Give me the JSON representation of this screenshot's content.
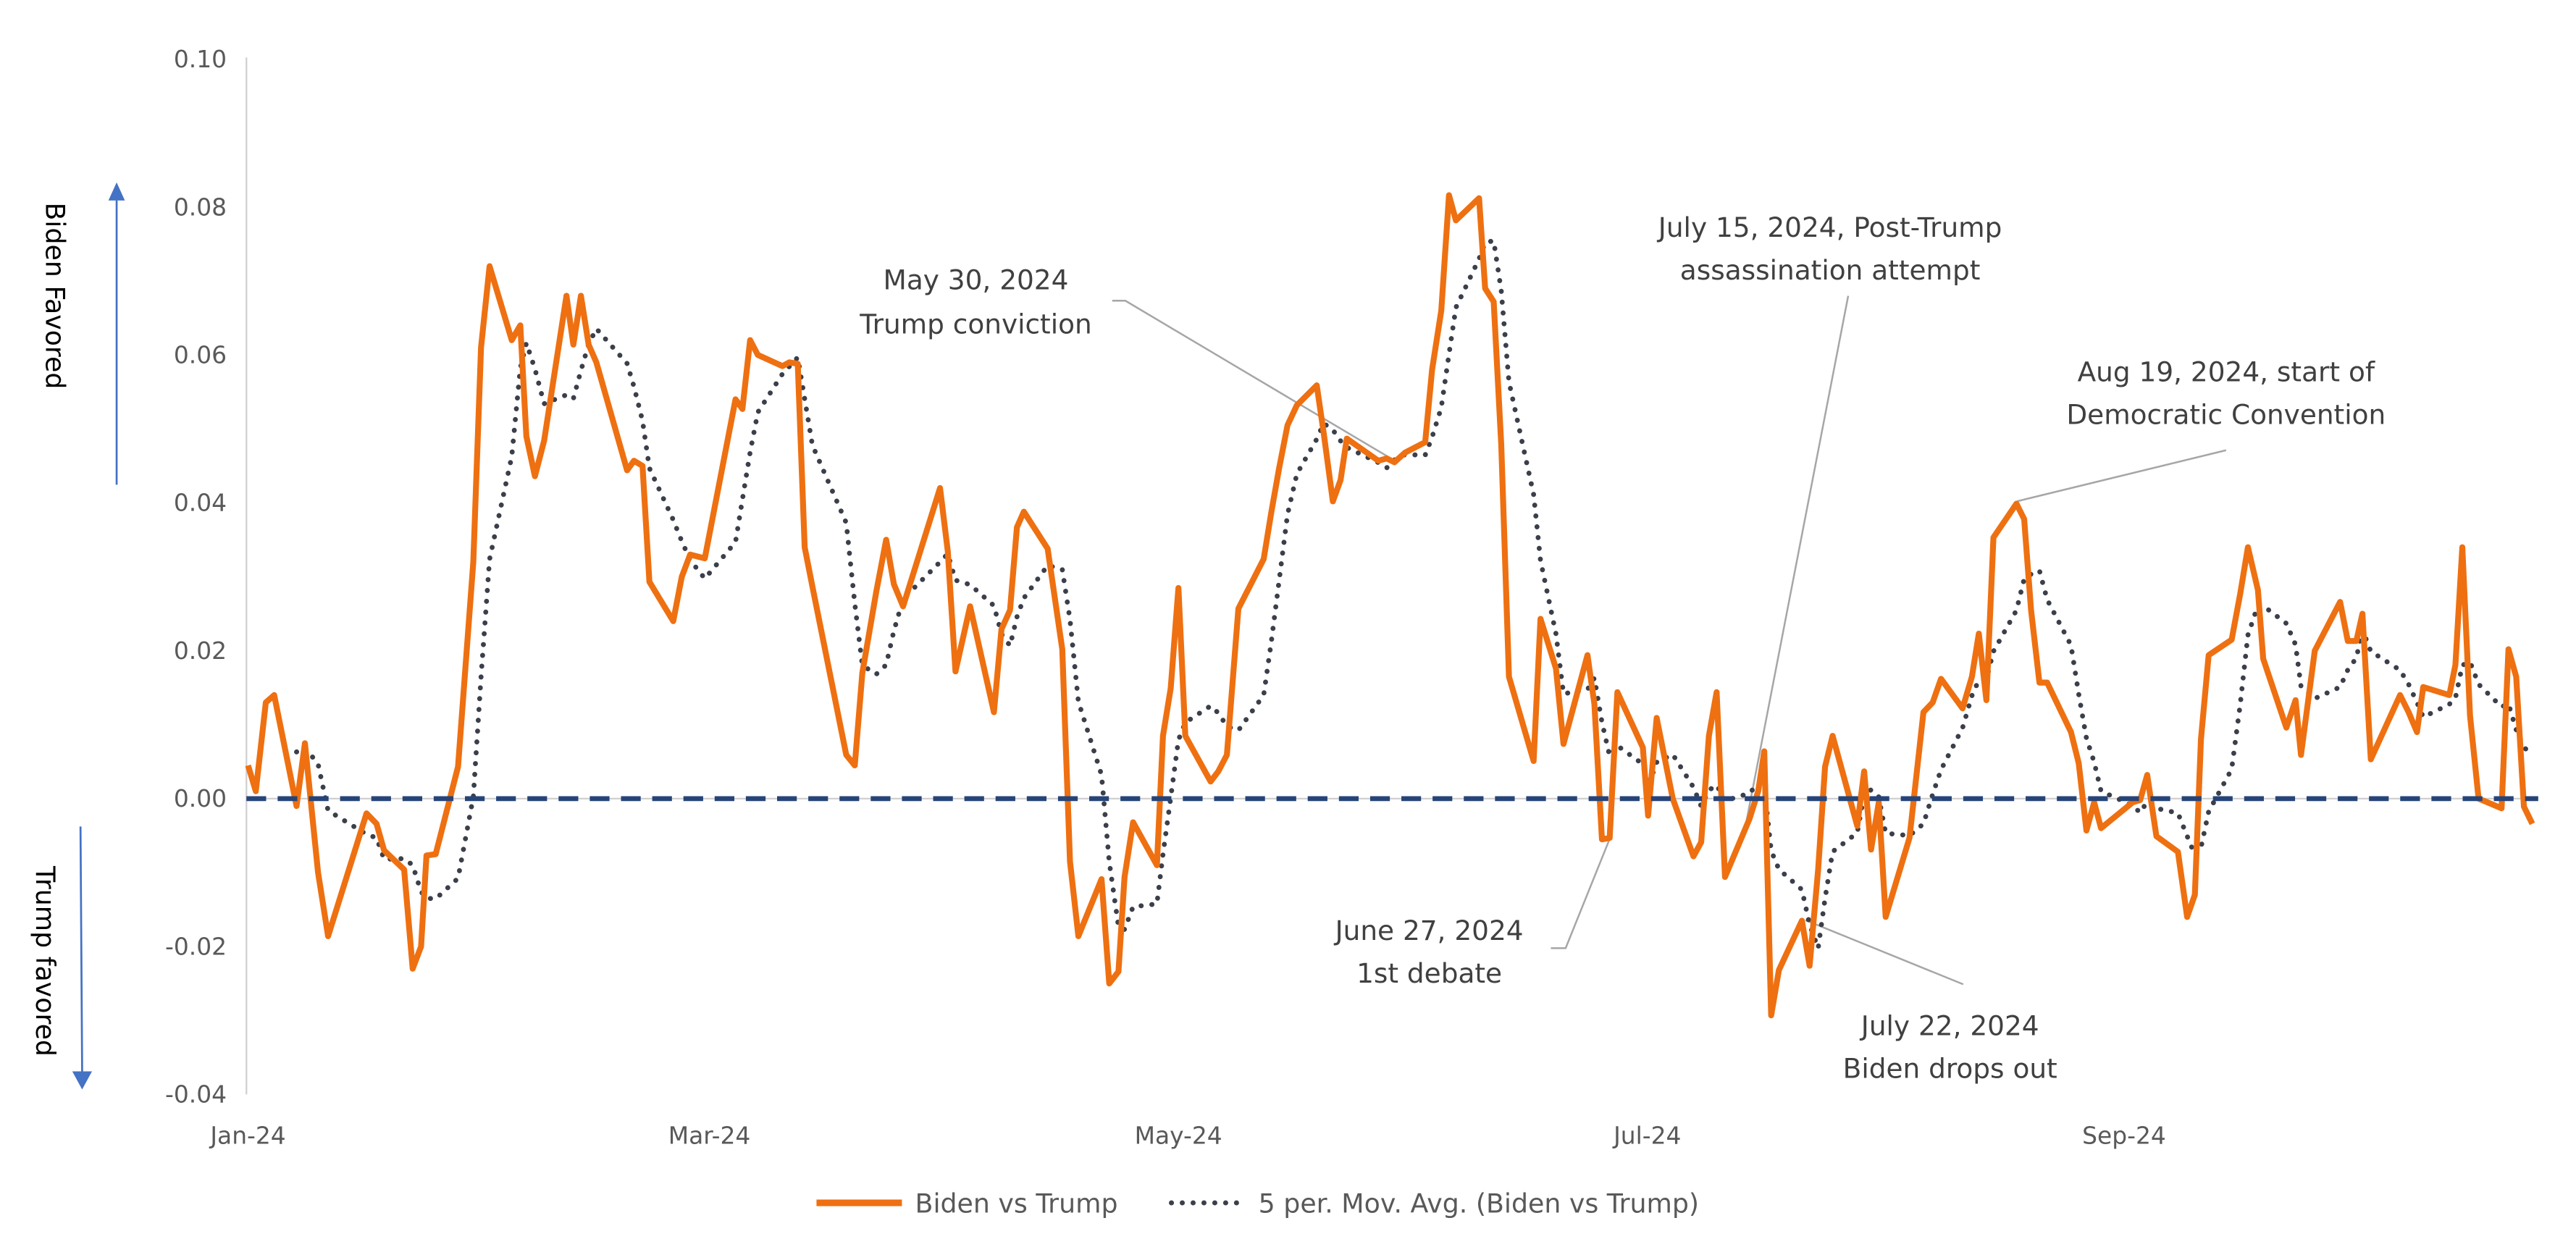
{
  "chart_data": {
    "type": "line",
    "title": "",
    "xlabel": "",
    "ylabel_top": "Biden Favored",
    "ylabel_bottom": "Trump favored",
    "x_unit": "days since 2024-01-01",
    "x_ticks": [
      {
        "day": 0,
        "label": "Jan-24"
      },
      {
        "day": 60,
        "label": "Mar-24"
      },
      {
        "day": 121,
        "label": "May-24"
      },
      {
        "day": 182,
        "label": "Jul-24"
      },
      {
        "day": 244,
        "label": "Sep-24"
      }
    ],
    "ylim": [
      -0.04,
      0.1
    ],
    "y_ticks": [
      "0.10",
      "0.08",
      "0.06",
      "0.04",
      "0.02",
      "0.00",
      "-0.02",
      "-0.04"
    ],
    "y_tick_values": [
      0.1,
      0.08,
      0.06,
      0.04,
      0.02,
      0.0,
      -0.02,
      -0.04
    ],
    "grid": false,
    "legend_position": "bottom",
    "colors": {
      "series": "#EE7011",
      "moving_avg": "#3B3F4A",
      "zero_line": "#264478",
      "arrow": "#4472C4"
    },
    "series": [
      {
        "name": "Biden vs Trump",
        "points": [
          [
            0,
            0.0045
          ],
          [
            1,
            0.001
          ],
          [
            2.3,
            0.013
          ],
          [
            3.4,
            0.014
          ],
          [
            6.3,
            -0.001
          ],
          [
            7.4,
            0.0075
          ],
          [
            9.1,
            -0.01
          ],
          [
            10.4,
            -0.0186
          ],
          [
            15.4,
            -0.002
          ],
          [
            16.7,
            -0.0034
          ],
          [
            17.7,
            -0.007
          ],
          [
            20.3,
            -0.0096
          ],
          [
            21.4,
            -0.023
          ],
          [
            22.5,
            -0.02
          ],
          [
            23.2,
            -0.0077
          ],
          [
            24.4,
            -0.0075
          ],
          [
            27.3,
            0.0043
          ],
          [
            29.3,
            0.032
          ],
          [
            30.3,
            0.061
          ],
          [
            31.4,
            0.072
          ],
          [
            34.3,
            0.062
          ],
          [
            35.4,
            0.064
          ],
          [
            36.2,
            0.049
          ],
          [
            37.3,
            0.0436
          ],
          [
            38.5,
            0.0484
          ],
          [
            41.4,
            0.068
          ],
          [
            42.3,
            0.0614
          ],
          [
            43.3,
            0.068
          ],
          [
            44.3,
            0.0614
          ],
          [
            45.3,
            0.059
          ],
          [
            49.3,
            0.0444
          ],
          [
            50.2,
            0.0457
          ],
          [
            51.3,
            0.045
          ],
          [
            52.2,
            0.0293
          ],
          [
            55.3,
            0.024
          ],
          [
            56.4,
            0.03
          ],
          [
            57.5,
            0.033
          ],
          [
            59.4,
            0.0325
          ],
          [
            63.4,
            0.054
          ],
          [
            64.3,
            0.0527
          ],
          [
            65.3,
            0.062
          ],
          [
            66.3,
            0.06
          ],
          [
            69.5,
            0.0585
          ],
          [
            70.4,
            0.059
          ],
          [
            71.5,
            0.0588
          ],
          [
            72.4,
            0.034
          ],
          [
            73.4,
            0.0287
          ],
          [
            77.8,
            0.0059
          ],
          [
            78.9,
            0.0045
          ],
          [
            79.9,
            0.017
          ],
          [
            81.7,
            0.028
          ],
          [
            83.0,
            0.035
          ],
          [
            84.0,
            0.029
          ],
          [
            85.2,
            0.026
          ],
          [
            90.0,
            0.042
          ],
          [
            91.0,
            0.0335
          ],
          [
            92.0,
            0.0172
          ],
          [
            93.9,
            0.026
          ],
          [
            97.0,
            0.0117
          ],
          [
            98.0,
            0.0229
          ],
          [
            99.1,
            0.0255
          ],
          [
            100.0,
            0.0367
          ],
          [
            100.9,
            0.0388
          ],
          [
            104.0,
            0.0338
          ],
          [
            105.9,
            0.0202
          ],
          [
            106.9,
            -0.0085
          ],
          [
            108.0,
            -0.0186
          ],
          [
            111.0,
            -0.0109
          ],
          [
            112.0,
            -0.025
          ],
          [
            113.2,
            -0.0234
          ],
          [
            114.0,
            -0.0106
          ],
          [
            115.1,
            -0.0032
          ],
          [
            118.2,
            -0.009
          ],
          [
            119.0,
            0.0085
          ],
          [
            120.0,
            0.0149
          ],
          [
            121.0,
            0.0285
          ],
          [
            121.9,
            0.0085
          ],
          [
            125.2,
            0.0023
          ],
          [
            126.2,
            0.0037
          ],
          [
            127.3,
            0.0059
          ],
          [
            128.8,
            0.0257
          ],
          [
            132.1,
            0.0324
          ],
          [
            133.1,
            0.0388
          ],
          [
            134.1,
            0.0447
          ],
          [
            135.2,
            0.0505
          ],
          [
            136.4,
            0.0532
          ],
          [
            139.0,
            0.0559
          ],
          [
            139.9,
            0.0495
          ],
          [
            141.1,
            0.0402
          ],
          [
            142.1,
            0.0431
          ],
          [
            142.9,
            0.0487
          ],
          [
            147.0,
            0.0457
          ],
          [
            148.1,
            0.046
          ],
          [
            149.1,
            0.0455
          ],
          [
            150.5,
            0.0468
          ],
          [
            153.1,
            0.0482
          ],
          [
            154.0,
            0.058
          ],
          [
            155.2,
            0.066
          ],
          [
            156.2,
            0.0816
          ],
          [
            157.1,
            0.0782
          ],
          [
            160.1,
            0.0812
          ],
          [
            160.9,
            0.069
          ],
          [
            162.0,
            0.0672
          ],
          [
            163.0,
            0.0479
          ],
          [
            164.0,
            0.0165
          ],
          [
            167.2,
            0.0051
          ],
          [
            168.1,
            0.0243
          ],
          [
            170.1,
            0.0176
          ],
          [
            171.1,
            0.0074
          ],
          [
            174.2,
            0.0194
          ],
          [
            175.1,
            0.0128
          ],
          [
            176.1,
            -0.0055
          ],
          [
            177.1,
            -0.0053
          ],
          [
            178.1,
            0.0144
          ],
          [
            181.4,
            0.0069
          ],
          [
            182.1,
            -0.0023
          ],
          [
            183.2,
            0.0109
          ],
          [
            185.3,
            0.0
          ],
          [
            188.0,
            -0.0078
          ],
          [
            189.0,
            -0.0059
          ],
          [
            190.0,
            0.0085
          ],
          [
            191.0,
            0.0144
          ],
          [
            192.1,
            -0.0106
          ],
          [
            195.3,
            -0.0027
          ],
          [
            196.4,
            0.001
          ],
          [
            197.2,
            0.0064
          ],
          [
            198.1,
            -0.0293
          ],
          [
            199.1,
            -0.0232
          ],
          [
            202.1,
            -0.0165
          ],
          [
            203.1,
            -0.0226
          ],
          [
            204.2,
            -0.0096
          ],
          [
            205.1,
            0.0043
          ],
          [
            206.1,
            0.0085
          ],
          [
            209.3,
            -0.0037
          ],
          [
            210.2,
            0.0037
          ],
          [
            211.1,
            -0.0069
          ],
          [
            212.1,
            -0.0005
          ],
          [
            213.0,
            -0.016
          ],
          [
            216.1,
            -0.0053
          ],
          [
            217.9,
            0.0117
          ],
          [
            219.1,
            0.013
          ],
          [
            220.2,
            0.0162
          ],
          [
            223.0,
            0.0122
          ],
          [
            224.2,
            0.0165
          ],
          [
            225.1,
            0.0223
          ],
          [
            226.1,
            0.0133
          ],
          [
            227.0,
            0.0353
          ],
          [
            230.0,
            0.0399
          ],
          [
            231.0,
            0.0378
          ],
          [
            231.9,
            0.0255
          ],
          [
            233.0,
            0.0157
          ],
          [
            234.0,
            0.0157
          ],
          [
            237.1,
            0.009
          ],
          [
            238.1,
            0.0048
          ],
          [
            239.1,
            -0.0043
          ],
          [
            240.1,
            -0.0005
          ],
          [
            241.0,
            -0.004
          ],
          [
            245.1,
            -0.0005
          ],
          [
            246.1,
            -0.0002
          ],
          [
            247.0,
            0.0032
          ],
          [
            248.2,
            -0.0051
          ],
          [
            251.0,
            -0.0072
          ],
          [
            252.2,
            -0.016
          ],
          [
            253.2,
            -0.013
          ],
          [
            254.0,
            0.008
          ],
          [
            255.0,
            0.0194
          ],
          [
            258.0,
            0.0215
          ],
          [
            259.1,
            0.0277
          ],
          [
            260.1,
            0.034
          ],
          [
            261.4,
            0.0282
          ],
          [
            262.1,
            0.0189
          ],
          [
            265.1,
            0.0096
          ],
          [
            266.3,
            0.0133
          ],
          [
            267.0,
            0.0059
          ],
          [
            268.8,
            0.02
          ],
          [
            272.1,
            0.0266
          ],
          [
            273.1,
            0.0213
          ],
          [
            274.2,
            0.0213
          ],
          [
            275.0,
            0.025
          ],
          [
            276.1,
            0.0053
          ],
          [
            279.9,
            0.014
          ],
          [
            281.0,
            0.0117
          ],
          [
            282.1,
            0.009
          ],
          [
            282.9,
            0.0151
          ],
          [
            286.3,
            0.014
          ],
          [
            287.1,
            0.0181
          ],
          [
            288.0,
            0.034
          ],
          [
            289.0,
            0.0112
          ],
          [
            290.1,
            0.0
          ],
          [
            293.1,
            -0.0013
          ],
          [
            294.0,
            0.0202
          ],
          [
            295.0,
            0.0165
          ],
          [
            296.0,
            -0.0011
          ],
          [
            297.1,
            -0.0034
          ]
        ]
      },
      {
        "name": "5 per. Mov. Avg. (Biden vs Trump)",
        "derived": "5-period trailing moving average of Biden vs Trump"
      }
    ],
    "reference_line": {
      "value": 0.0,
      "style": "dashed"
    },
    "annotations": [
      {
        "lines": [
          "May 30, 2024",
          "Trump conviction"
        ]
      },
      {
        "lines": [
          "July 15, 2024, Post-Trump",
          "assassination attempt"
        ]
      },
      {
        "lines": [
          "Aug 19, 2024, start of",
          "Democratic Convention"
        ]
      },
      {
        "lines": [
          "June 27, 2024",
          "1st debate"
        ]
      },
      {
        "lines": [
          "July 22, 2024",
          "Biden drops out"
        ]
      }
    ],
    "legend": [
      "Biden vs Trump",
      "5 per. Mov. Avg. (Biden vs Trump)"
    ]
  }
}
